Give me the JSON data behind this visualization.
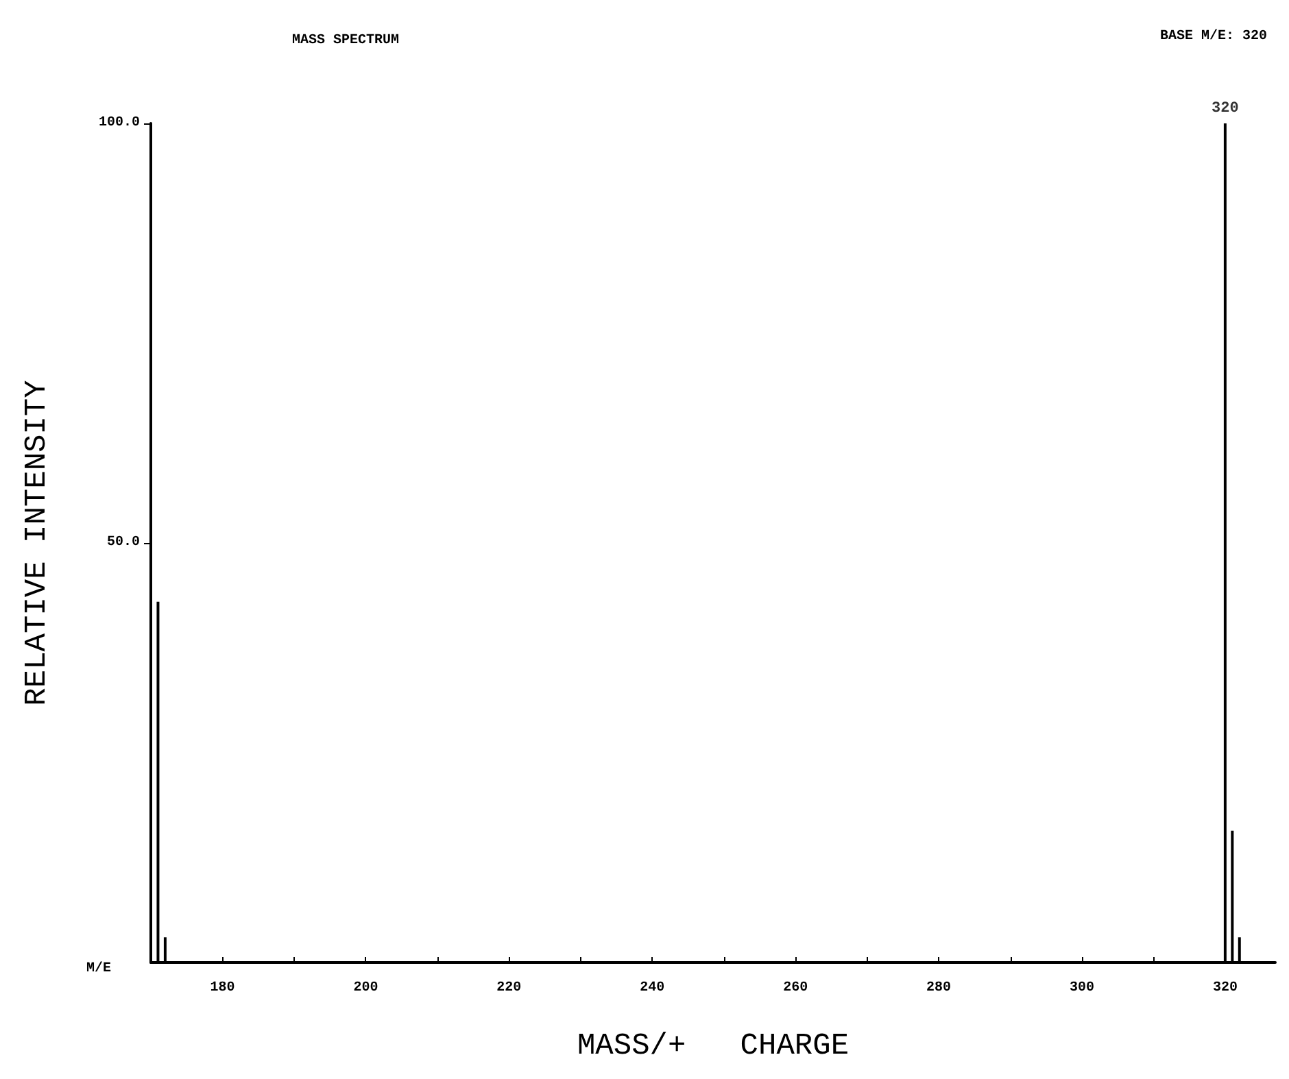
{
  "chart_data": {
    "type": "bar",
    "title": "MASS SPECTRUM",
    "xlabel": "MASS/+   CHARGE",
    "ylabel": "RELATIVE INTENSITY",
    "annotations": [
      "BASE M/E: 320",
      "M/E",
      {
        "text": "320",
        "x": 320,
        "y": 100
      }
    ],
    "x": [
      171,
      172,
      320,
      321,
      322
    ],
    "values": [
      43,
      3,
      100,
      15.7,
      3
    ],
    "color": "#000000",
    "xlim": [
      170,
      327
    ],
    "ylim": [
      0,
      100
    ],
    "xticks": [
      180,
      {
        "value": 190,
        "label": null
      },
      200,
      {
        "value": 210,
        "label": null
      },
      220,
      {
        "value": 230,
        "label": null
      },
      240,
      {
        "value": 250,
        "label": null
      },
      260,
      {
        "value": 270,
        "label": null
      },
      280,
      {
        "value": 290,
        "label": null
      },
      300,
      {
        "value": 310,
        "label": null
      },
      320
    ],
    "yticks": [
      {
        "value": 50,
        "label": "50.0"
      },
      {
        "value": 100,
        "label": "100.0"
      }
    ],
    "grid": false
  }
}
